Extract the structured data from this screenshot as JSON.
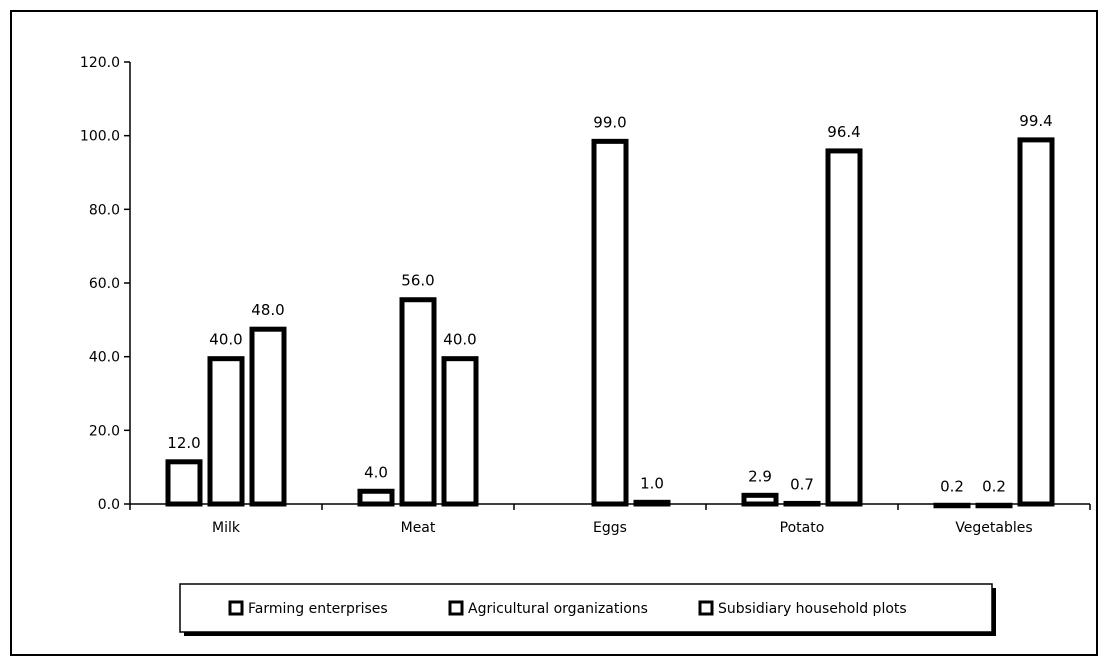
{
  "chart_data": {
    "type": "bar",
    "categories": [
      "Milk",
      "Meat",
      "Eggs",
      "Potato",
      "Vegetables"
    ],
    "series": [
      {
        "name": "Farming enterprises",
        "values": [
          12.0,
          4.0,
          null,
          2.9,
          0.2
        ]
      },
      {
        "name": "Agricultural organizations",
        "values": [
          40.0,
          56.0,
          99.0,
          0.7,
          0.2
        ]
      },
      {
        "name": "Subsidiary household plots",
        "values": [
          48.0,
          40.0,
          1.0,
          96.4,
          99.4
        ]
      }
    ],
    "data_labels": [
      [
        "12.0",
        "40.0",
        "48.0"
      ],
      [
        "4.0",
        "56.0",
        "40.0"
      ],
      [
        "",
        "99.0",
        "1.0"
      ],
      [
        "2.9",
        "0.7",
        "96.4"
      ],
      [
        "0.2",
        "0.2",
        "99.4"
      ]
    ],
    "y_ticks": [
      "0.0",
      "20.0",
      "40.0",
      "60.0",
      "80.0",
      "100.0",
      "120.0"
    ],
    "ylim": [
      0,
      120
    ],
    "title": "",
    "xlabel": "",
    "ylabel": "",
    "grid": false,
    "legend": "bottom",
    "colors": {
      "stroke": "#000000",
      "fill": "#ffffff"
    }
  }
}
